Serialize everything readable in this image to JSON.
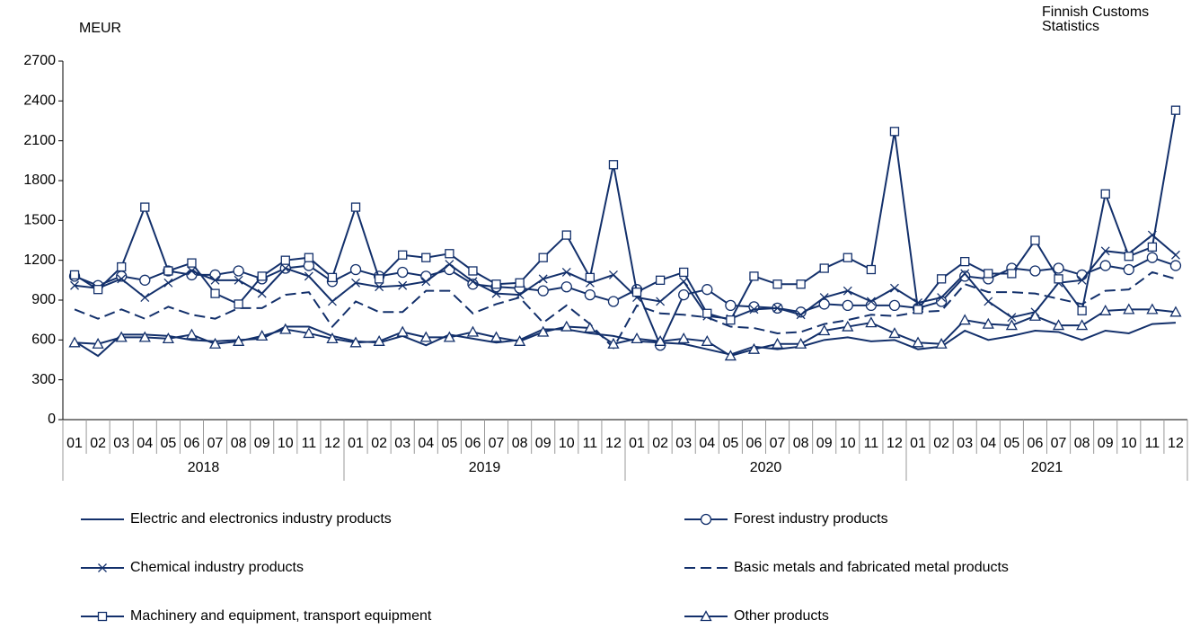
{
  "chart_data": {
    "type": "line",
    "y_label": "MEUR",
    "source": "Finnish Customs Statistics",
    "categories": [
      "01",
      "02",
      "03",
      "04",
      "05",
      "06",
      "07",
      "08",
      "09",
      "10",
      "11",
      "12",
      "01",
      "02",
      "03",
      "04",
      "05",
      "06",
      "07",
      "08",
      "09",
      "10",
      "11",
      "12",
      "01",
      "02",
      "03",
      "04",
      "05",
      "06",
      "07",
      "08",
      "09",
      "10",
      "11",
      "12",
      "01",
      "02",
      "03",
      "04",
      "05",
      "06",
      "07",
      "08",
      "09",
      "10",
      "11",
      "12"
    ],
    "years": [
      "2018",
      "2019",
      "2020",
      "2021"
    ],
    "ylim": [
      0,
      2700
    ],
    "yticks": [
      0,
      300,
      600,
      900,
      1200,
      1500,
      1800,
      2100,
      2400,
      2700
    ],
    "grid": false,
    "legend": "bottom",
    "series": [
      {
        "name": "Electric and electronics industry products",
        "color": "#13306b",
        "marker": "none",
        "dash": false,
        "values": [
          590,
          480,
          640,
          640,
          630,
          600,
          590,
          600,
          610,
          700,
          700,
          630,
          590,
          580,
          630,
          560,
          640,
          610,
          580,
          600,
          680,
          680,
          650,
          630,
          590,
          580,
          570,
          530,
          490,
          550,
          530,
          550,
          600,
          620,
          590,
          600,
          530,
          550,
          670,
          600,
          630,
          670,
          660,
          600,
          670,
          650,
          720,
          730
        ]
      },
      {
        "name": "Forest industry products",
        "color": "#13306b",
        "marker": "circle",
        "dash": false,
        "values": [
          1080,
          1010,
          1080,
          1050,
          1120,
          1090,
          1090,
          1120,
          1060,
          1140,
          1160,
          1040,
          1130,
          1080,
          1110,
          1080,
          1130,
          1020,
          1000,
          990,
          970,
          1000,
          940,
          890,
          980,
          560,
          940,
          980,
          860,
          850,
          840,
          810,
          870,
          860,
          860,
          860,
          840,
          890,
          1080,
          1060,
          1140,
          1120,
          1140,
          1090,
          1160,
          1130,
          1220,
          1160
        ]
      },
      {
        "name": "Chemical industry products",
        "color": "#13306b",
        "marker": "x",
        "dash": false,
        "values": [
          1010,
          990,
          1060,
          920,
          1030,
          1120,
          1050,
          1050,
          950,
          1140,
          1080,
          890,
          1030,
          1000,
          1010,
          1040,
          1170,
          1040,
          950,
          940,
          1060,
          1110,
          1030,
          1090,
          920,
          890,
          1040,
          780,
          760,
          830,
          840,
          790,
          920,
          970,
          890,
          990,
          880,
          920,
          1100,
          890,
          770,
          810,
          1030,
          1050,
          1270,
          1250,
          1390,
          1240
        ]
      },
      {
        "name": "Basic metals and fabricated metal products",
        "color": "#13306b",
        "marker": "none",
        "dash": true,
        "values": [
          830,
          760,
          830,
          760,
          850,
          790,
          760,
          840,
          840,
          940,
          960,
          700,
          890,
          810,
          810,
          970,
          970,
          800,
          870,
          920,
          730,
          860,
          720,
          540,
          860,
          800,
          790,
          770,
          700,
          690,
          650,
          660,
          720,
          750,
          790,
          780,
          810,
          820,
          1020,
          960,
          960,
          950,
          910,
          870,
          970,
          980,
          1110,
          1060
        ]
      },
      {
        "name": "Machinery and equipment, transport equipment",
        "color": "#13306b",
        "marker": "square",
        "dash": false,
        "values": [
          1090,
          980,
          1150,
          1600,
          1120,
          1180,
          950,
          870,
          1080,
          1200,
          1220,
          1070,
          1600,
          1060,
          1240,
          1220,
          1250,
          1120,
          1020,
          1030,
          1220,
          1390,
          1070,
          1920,
          960,
          1050,
          1110,
          800,
          750,
          1080,
          1020,
          1020,
          1140,
          1220,
          1130,
          2170,
          830,
          1060,
          1190,
          1100,
          1100,
          1350,
          1060,
          820,
          1700,
          1230,
          1300,
          2330
        ]
      },
      {
        "name": "Other products",
        "color": "#13306b",
        "marker": "triangle",
        "dash": false,
        "values": [
          580,
          570,
          620,
          620,
          610,
          640,
          570,
          590,
          630,
          680,
          650,
          610,
          580,
          590,
          660,
          620,
          620,
          660,
          620,
          590,
          660,
          700,
          690,
          570,
          610,
          590,
          610,
          590,
          480,
          530,
          570,
          570,
          670,
          700,
          730,
          650,
          580,
          570,
          750,
          720,
          710,
          780,
          710,
          710,
          820,
          830,
          830,
          810
        ]
      }
    ]
  }
}
